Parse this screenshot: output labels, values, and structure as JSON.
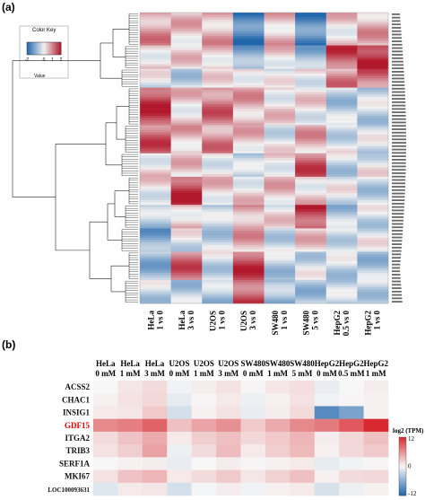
{
  "panel_a_label": "(a)",
  "panel_b_label": "(b)",
  "chart_data": [
    {
      "type": "heatmap",
      "panel": "a",
      "color_key": {
        "title": "Color Key",
        "xlabel": "Value",
        "ticks": [
          "-2",
          "0",
          "1",
          "2"
        ],
        "range": [
          -2,
          2
        ]
      },
      "colors": {
        "low": "#2166ac",
        "mid": "#f2f2f2",
        "high": "#b2182b"
      },
      "columns": [
        [
          "HeLa",
          "1 vs 0"
        ],
        [
          "HeLa",
          "3 vs 0"
        ],
        [
          "U2OS",
          "1 vs 0"
        ],
        [
          "U2OS",
          "3 vs 0"
        ],
        [
          "SW480",
          "1 vs 0"
        ],
        [
          "SW480",
          "5 vs 0"
        ],
        [
          "HepG2",
          "0.5 vs 0"
        ],
        [
          "HepG2",
          "1 vs 0"
        ]
      ],
      "row_blocks": [
        {
          "rows": 14,
          "values": [
            0.8,
            0.4,
            0.6,
            -1.6,
            0.5,
            -1.5,
            0.3,
            0.6
          ]
        },
        {
          "rows": 10,
          "values": [
            0.3,
            0.2,
            0.4,
            -1.0,
            0.3,
            -0.8,
            1.4,
            1.9
          ]
        },
        {
          "rows": 8,
          "values": [
            -0.2,
            -0.4,
            0.0,
            0.3,
            -0.2,
            0.1,
            0.9,
            1.2
          ]
        },
        {
          "rows": 16,
          "values": [
            1.6,
            0.3,
            1.1,
            0.6,
            0.2,
            0.1,
            -0.5,
            -0.4
          ]
        },
        {
          "rows": 12,
          "values": [
            1.3,
            0.5,
            0.9,
            0.4,
            -0.1,
            0.6,
            -0.2,
            -0.3
          ]
        },
        {
          "rows": 10,
          "values": [
            0.2,
            0.3,
            0.1,
            -0.5,
            0.2,
            1.3,
            -0.4,
            -0.1
          ]
        },
        {
          "rows": 12,
          "values": [
            0.1,
            1.6,
            0.3,
            0.2,
            0.4,
            0.3,
            -0.2,
            -0.4
          ]
        },
        {
          "rows": 10,
          "values": [
            -0.6,
            0.4,
            -0.5,
            0.7,
            0.1,
            1.6,
            -0.6,
            -0.3
          ]
        },
        {
          "rows": 10,
          "values": [
            -1.0,
            -0.2,
            -0.4,
            0.6,
            -0.3,
            0.3,
            -0.2,
            -0.2
          ]
        },
        {
          "rows": 12,
          "values": [
            -0.8,
            1.2,
            -0.3,
            1.5,
            -0.5,
            -0.3,
            -0.4,
            -0.6
          ]
        },
        {
          "rows": 10,
          "values": [
            -0.4,
            -0.5,
            -0.6,
            1.4,
            -0.8,
            -0.6,
            -0.5,
            -0.4
          ]
        }
      ],
      "gene_label_count": 86
    },
    {
      "type": "heatmap",
      "panel": "b",
      "columns": [
        [
          "HeLa",
          "0 mM"
        ],
        [
          "HeLa",
          "1 mM"
        ],
        [
          "HeLa",
          "3 mM"
        ],
        [
          "U2OS",
          "0 mM"
        ],
        [
          "U2OS",
          "1 mM"
        ],
        [
          "U2OS",
          "3 mM"
        ],
        [
          "SW480",
          "0 mM"
        ],
        [
          "SW480",
          "1 mM"
        ],
        [
          "SW480",
          "5 mM"
        ],
        [
          "HepG2",
          "0 mM"
        ],
        [
          "HepG2",
          "0.5 mM"
        ],
        [
          "HepG2",
          "1 mM"
        ]
      ],
      "rows": [
        "ACSS2",
        "CHAC1",
        "INSIG1",
        "GDF15",
        "ITGA2",
        "TRIB3",
        "SERF1A",
        "MKI67",
        "LOC100093631"
      ],
      "highlight_row": "GDF15",
      "highlight_color": "#e00000",
      "values": [
        [
          0.0,
          0.5,
          0.8,
          -0.2,
          0.3,
          0.6,
          0.1,
          0.5,
          0.7,
          -0.4,
          0.0,
          0.3
        ],
        [
          0.2,
          0.6,
          0.9,
          -0.5,
          0.1,
          0.4,
          -0.3,
          0.2,
          0.6,
          -0.2,
          0.1,
          0.2
        ],
        [
          0.4,
          0.5,
          1.3,
          -1.0,
          0.2,
          0.6,
          -0.4,
          0.3,
          0.8,
          -4.5,
          -3.5,
          0.2
        ],
        [
          3.2,
          3.5,
          4.3,
          1.6,
          2.4,
          3.0,
          1.3,
          2.2,
          3.2,
          3.6,
          4.6,
          6.5
        ],
        [
          0.8,
          1.5,
          2.2,
          0.4,
          1.2,
          1.6,
          0.9,
          1.3,
          1.9,
          0.3,
          0.9,
          1.6
        ],
        [
          0.6,
          1.2,
          2.5,
          -0.3,
          0.8,
          1.7,
          0.4,
          1.2,
          1.8,
          0.2,
          0.9,
          1.3
        ],
        [
          0.0,
          0.2,
          0.3,
          -0.4,
          0.0,
          0.3,
          0.1,
          0.2,
          0.4,
          -0.5,
          -0.2,
          0.1
        ],
        [
          0.6,
          1.5,
          1.9,
          0.4,
          0.8,
          1.3,
          0.5,
          1.1,
          1.6,
          0.2,
          0.8,
          0.9
        ],
        [
          -0.7,
          0.4,
          0.5,
          -1.0,
          -0.1,
          0.3,
          -0.2,
          0.2,
          0.4,
          -0.9,
          -0.3,
          0.2
        ]
      ],
      "legend": {
        "title": "log2 (TPM)",
        "ticks": [
          "12",
          "0",
          "-12"
        ],
        "range": [
          -12,
          12
        ]
      },
      "colors": {
        "low": "#2166ac",
        "mid": "#f7f7f7",
        "high": "#d6282e"
      }
    }
  ]
}
